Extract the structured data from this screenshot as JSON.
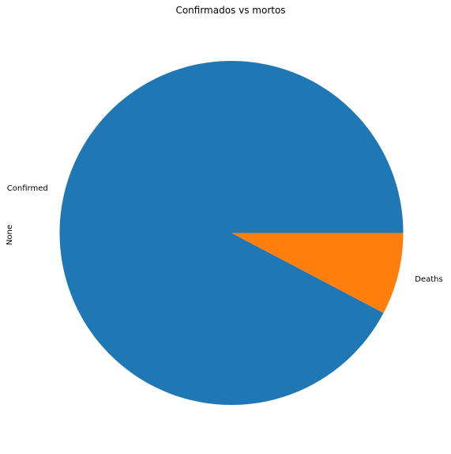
{
  "chart_data": {
    "type": "pie",
    "title": "Confirmados vs mortos",
    "ylabel": "None",
    "slices": [
      {
        "label": "Confirmed",
        "value": 92.3,
        "color": "#1f77b4"
      },
      {
        "label": "Deaths",
        "value": 7.7,
        "color": "#ff7f0e"
      }
    ],
    "start_angle_deg": 0,
    "direction": "counterclockwise"
  }
}
